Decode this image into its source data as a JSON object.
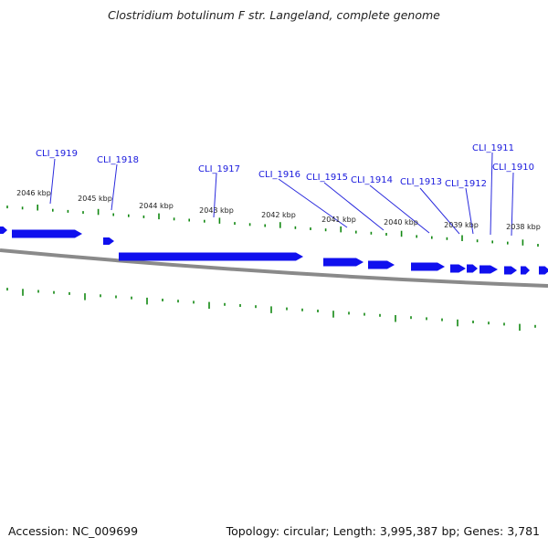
{
  "title": "Clostridium botulinum F str. Langeland, complete genome",
  "footer": {
    "accession": "Accession: NC_009699",
    "summary": "Topology: circular; Length: 3,995,387 bp; Genes: 3,781"
  },
  "colors": {
    "gene": "#1010ee",
    "tick": "#118811",
    "backbone": "#8a8a8a",
    "label": "#1a1add",
    "pointer": "#2a2add"
  },
  "kbp_labels": [
    "2046 kbp",
    "2045 kbp",
    "2044 kbp",
    "2043 kbp",
    "2042 kbp",
    "2041 kbp",
    "2040 kbp",
    "2039 kbp",
    "2038 kbp"
  ],
  "gene_labels": [
    "CLI_1919",
    "CLI_1918",
    "CLI_1917",
    "CLI_1916",
    "CLI_1915",
    "CLI_1914",
    "CLI_1913",
    "CLI_1912",
    "CLI_1911",
    "CLI_1910"
  ]
}
